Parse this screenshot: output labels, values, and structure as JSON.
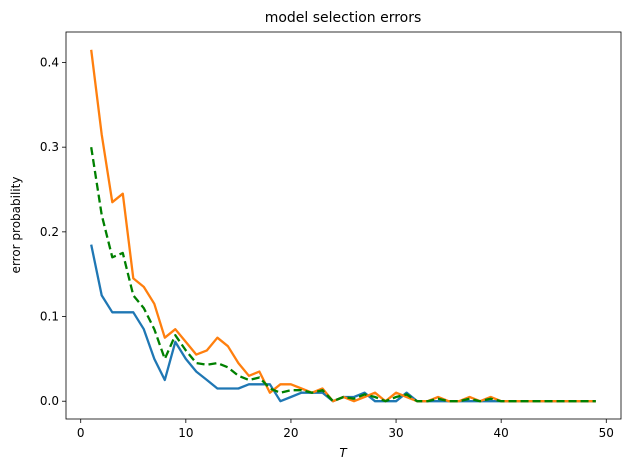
{
  "chart_data": {
    "type": "line",
    "title": "model selection errors",
    "xlabel": "T",
    "ylabel": "error probability",
    "xlim": [
      -1.4,
      51.4
    ],
    "ylim": [
      -0.021,
      0.436
    ],
    "xticks": [
      0,
      10,
      20,
      30,
      40,
      50
    ],
    "yticks": [
      0.0,
      0.1,
      0.2,
      0.3,
      0.4
    ],
    "ytick_labels": [
      "0.0",
      "0.1",
      "0.2",
      "0.3",
      "0.4"
    ],
    "grid": false,
    "legend": "none",
    "x": [
      1,
      2,
      3,
      4,
      5,
      6,
      7,
      8,
      9,
      10,
      11,
      12,
      13,
      14,
      15,
      16,
      17,
      18,
      19,
      20,
      21,
      22,
      23,
      24,
      25,
      26,
      27,
      28,
      29,
      30,
      31,
      32,
      33,
      34,
      35,
      36,
      37,
      38,
      39,
      40,
      41,
      42,
      43,
      44,
      45,
      46,
      47,
      48,
      49
    ],
    "series": [
      {
        "color": "#1f77b4",
        "style": "solid",
        "values": [
          0.185,
          0.125,
          0.105,
          0.105,
          0.105,
          0.085,
          0.05,
          0.025,
          0.07,
          0.05,
          0.035,
          0.025,
          0.015,
          0.015,
          0.015,
          0.02,
          0.02,
          0.02,
          0.0,
          0.005,
          0.01,
          0.01,
          0.01,
          0.0,
          0.005,
          0.005,
          0.01,
          0.0,
          0.0,
          0.0,
          0.01,
          0.0,
          0.0,
          0.0,
          0.0,
          0.0,
          0.0,
          0.0,
          0.0,
          0.0,
          0.0,
          0.0,
          0.0,
          0.0,
          0.0,
          0.0,
          0.0,
          0.0,
          0.0
        ]
      },
      {
        "color": "#ff7f0e",
        "style": "solid",
        "values": [
          0.415,
          0.315,
          0.235,
          0.245,
          0.145,
          0.135,
          0.115,
          0.075,
          0.085,
          0.07,
          0.055,
          0.06,
          0.075,
          0.065,
          0.045,
          0.03,
          0.035,
          0.01,
          0.02,
          0.02,
          0.015,
          0.01,
          0.015,
          0.0,
          0.005,
          0.0,
          0.005,
          0.01,
          0.0,
          0.01,
          0.005,
          0.0,
          0.0,
          0.005,
          0.0,
          0.0,
          0.005,
          0.0,
          0.005,
          0.0,
          0.0,
          0.0,
          0.0,
          0.0,
          0.0,
          0.0,
          0.0,
          0.0,
          0.0
        ]
      },
      {
        "color": "#008000",
        "style": "dashed",
        "values": [
          0.3,
          0.22,
          0.17,
          0.175,
          0.125,
          0.11,
          0.085,
          0.05,
          0.078,
          0.06,
          0.045,
          0.043,
          0.045,
          0.04,
          0.03,
          0.025,
          0.028,
          0.015,
          0.01,
          0.013,
          0.013,
          0.01,
          0.013,
          0.0,
          0.005,
          0.003,
          0.008,
          0.005,
          0.0,
          0.005,
          0.008,
          0.0,
          0.0,
          0.003,
          0.0,
          0.0,
          0.003,
          0.0,
          0.003,
          0.0,
          0.0,
          0.0,
          0.0,
          0.0,
          0.0,
          0.0,
          0.0,
          0.0,
          0.0
        ]
      }
    ]
  }
}
